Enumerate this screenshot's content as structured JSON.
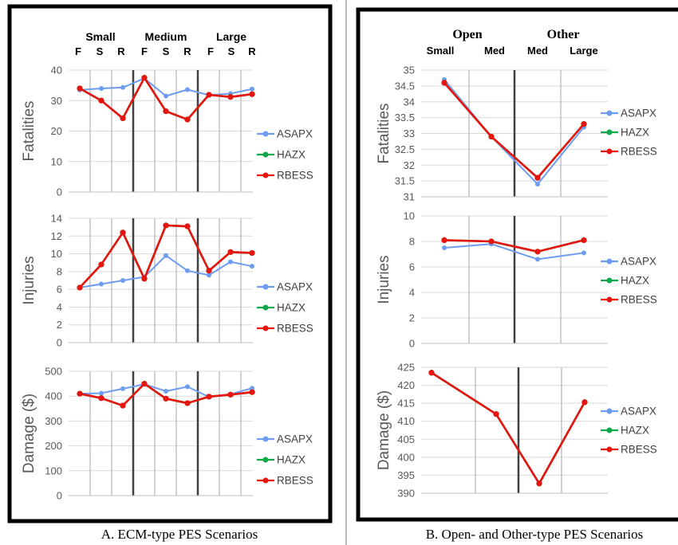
{
  "colors": {
    "ASAPX": "#6e9cf0",
    "HAZX": "#10a84a",
    "RBESS": "#e8140f",
    "frame": "#000000",
    "grid": "#a6a6a6",
    "axis": "#595959"
  },
  "panel_a": {
    "caption": "A.  ECM-type PES Scenarios",
    "group_headers": [
      "Small",
      "Medium",
      "Large"
    ],
    "sub_headers": [
      "F",
      "S",
      "R",
      "F",
      "S",
      "R",
      "F",
      "S",
      "R"
    ]
  },
  "panel_b": {
    "caption": "B.  Open- and Other-type PES Scenarios",
    "group_headers": [
      "Open",
      "Other"
    ],
    "sub_headers": [
      "Small",
      "Med",
      "Med",
      "Large"
    ]
  },
  "chart_data": [
    {
      "id": "a_fatalities",
      "type": "line",
      "panel": "A",
      "categories": [
        "F",
        "S",
        "R",
        "F",
        "S",
        "R",
        "F",
        "S",
        "R"
      ],
      "ylabel": "Fatalities",
      "ylim": [
        0,
        40
      ],
      "yticks": [
        0,
        10,
        20,
        30,
        40
      ],
      "series": [
        {
          "name": "ASAPX",
          "values": [
            33.5,
            34.0,
            34.3,
            37.3,
            31.5,
            33.6,
            31.8,
            32.3,
            33.8
          ]
        },
        {
          "name": "HAZX",
          "values": [
            34.0,
            30.0,
            24.2,
            37.5,
            26.5,
            23.8,
            31.9,
            31.2,
            32.1
          ]
        },
        {
          "name": "RBESS",
          "values": [
            34.0,
            30.0,
            24.2,
            37.5,
            26.5,
            23.8,
            31.9,
            31.2,
            32.1
          ]
        }
      ],
      "legend": "right"
    },
    {
      "id": "a_injuries",
      "type": "line",
      "panel": "A",
      "categories": [
        "F",
        "S",
        "R",
        "F",
        "S",
        "R",
        "F",
        "S",
        "R"
      ],
      "ylabel": "Injuries",
      "ylim": [
        0,
        14
      ],
      "yticks": [
        0,
        2,
        4,
        6,
        8,
        10,
        12,
        14
      ],
      "series": [
        {
          "name": "ASAPX",
          "values": [
            6.2,
            6.6,
            7.0,
            7.4,
            9.8,
            8.1,
            7.6,
            9.1,
            8.6
          ]
        },
        {
          "name": "HAZX",
          "values": [
            6.2,
            8.8,
            12.4,
            7.2,
            13.2,
            13.1,
            8.1,
            10.2,
            10.1
          ]
        },
        {
          "name": "RBESS",
          "values": [
            6.2,
            8.8,
            12.4,
            7.2,
            13.2,
            13.1,
            8.1,
            10.2,
            10.1
          ]
        }
      ],
      "legend": "right"
    },
    {
      "id": "a_damage",
      "type": "line",
      "panel": "A",
      "categories": [
        "F",
        "S",
        "R",
        "F",
        "S",
        "R",
        "F",
        "S",
        "R"
      ],
      "ylabel": "Damage ($)",
      "ylim": [
        0,
        500
      ],
      "yticks": [
        0,
        100,
        200,
        300,
        400,
        500
      ],
      "series": [
        {
          "name": "ASAPX",
          "values": [
            410,
            412,
            430,
            448,
            420,
            438,
            397,
            408,
            432
          ]
        },
        {
          "name": "HAZX",
          "values": [
            410,
            392,
            362,
            450,
            390,
            372,
            398,
            406,
            416
          ]
        },
        {
          "name": "RBESS",
          "values": [
            410,
            392,
            362,
            450,
            390,
            372,
            398,
            406,
            416
          ]
        }
      ],
      "legend": "right"
    },
    {
      "id": "b_fatalities",
      "type": "line",
      "panel": "B",
      "categories": [
        "Small",
        "Med",
        "Med",
        "Large"
      ],
      "ylabel": "Fatalities",
      "ylim": [
        31,
        35
      ],
      "yticks": [
        31,
        31.5,
        32,
        32.5,
        33,
        33.5,
        34,
        34.5,
        35
      ],
      "series": [
        {
          "name": "ASAPX",
          "values": [
            34.7,
            32.9,
            31.4,
            33.2
          ]
        },
        {
          "name": "HAZX",
          "values": [
            34.6,
            32.9,
            31.6,
            33.3
          ]
        },
        {
          "name": "RBESS",
          "values": [
            34.6,
            32.9,
            31.6,
            33.3
          ]
        }
      ],
      "legend": "right"
    },
    {
      "id": "b_injuries",
      "type": "line",
      "panel": "B",
      "categories": [
        "Small",
        "Med",
        "Med",
        "Large"
      ],
      "ylabel": "Injuries",
      "ylim": [
        0,
        10
      ],
      "yticks": [
        0,
        2,
        4,
        6,
        8,
        10
      ],
      "series": [
        {
          "name": "ASAPX",
          "values": [
            7.5,
            7.8,
            6.6,
            7.1
          ]
        },
        {
          "name": "HAZX",
          "values": [
            8.1,
            8.0,
            7.2,
            8.1
          ]
        },
        {
          "name": "RBESS",
          "values": [
            8.1,
            8.0,
            7.2,
            8.1
          ]
        }
      ],
      "legend": "right"
    },
    {
      "id": "b_damage",
      "type": "line",
      "panel": "B",
      "categories": [
        "Small",
        "Med",
        "Med",
        "Large"
      ],
      "ylabel": "Damage ($)",
      "ylim": [
        390,
        425
      ],
      "yticks": [
        390,
        395,
        400,
        405,
        410,
        415,
        420,
        425
      ],
      "series": [
        {
          "name": "ASAPX",
          "values": [
            423.5,
            412.0,
            392.7,
            415.5
          ]
        },
        {
          "name": "HAZX",
          "values": [
            423.5,
            412.0,
            392.7,
            415.3
          ]
        },
        {
          "name": "RBESS",
          "values": [
            423.5,
            412.0,
            392.7,
            415.3
          ]
        }
      ],
      "legend": "right"
    }
  ]
}
